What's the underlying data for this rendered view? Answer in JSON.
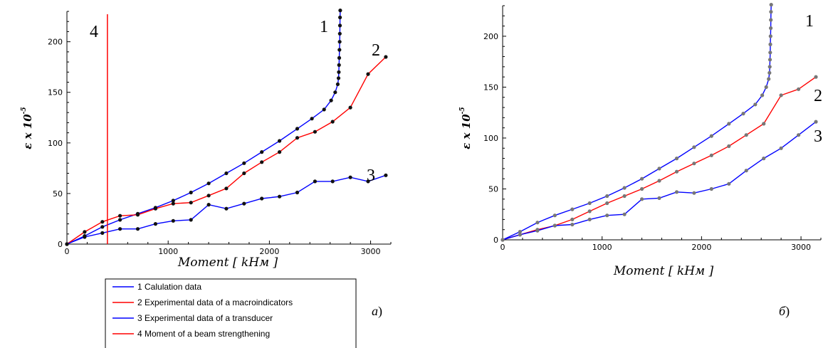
{
  "chart_data": [
    {
      "type": "line",
      "panel_label": "a",
      "panel_paren": ")",
      "xlabel": "Moment",
      "xunit": "kHм",
      "ylabel": "ε x 10",
      "ylabel_exp": "-5",
      "xlim": [
        0,
        3200
      ],
      "ylim": [
        0,
        230
      ],
      "xticks": [
        0,
        1000,
        2000,
        3000
      ],
      "yticks": [
        0,
        50,
        100,
        150,
        200
      ],
      "grid": false,
      "series": [
        {
          "name": "1",
          "color": "#0000ff",
          "points": [
            [
              0,
              0
            ],
            [
              175,
              8
            ],
            [
              350,
              17
            ],
            [
              525,
              24
            ],
            [
              700,
              30
            ],
            [
              875,
              36
            ],
            [
              1050,
              43
            ],
            [
              1225,
              51
            ],
            [
              1400,
              60
            ],
            [
              1575,
              70
            ],
            [
              1750,
              80
            ],
            [
              1925,
              91
            ],
            [
              2100,
              102
            ],
            [
              2275,
              114
            ],
            [
              2420,
              124
            ],
            [
              2540,
              133
            ],
            [
              2610,
              142
            ],
            [
              2650,
              150
            ],
            [
              2675,
              158
            ],
            [
              2683,
              164
            ],
            [
              2686,
              170
            ],
            [
              2688,
              177
            ],
            [
              2690,
              184
            ],
            [
              2692,
              192
            ],
            [
              2694,
              200
            ],
            [
              2696,
              208
            ],
            [
              2697,
              216
            ],
            [
              2698,
              224
            ],
            [
              2700,
              231
            ]
          ]
        },
        {
          "name": "2",
          "color": "#ff0000",
          "points": [
            [
              0,
              0
            ],
            [
              175,
              12
            ],
            [
              350,
              22
            ],
            [
              525,
              28
            ],
            [
              700,
              29
            ],
            [
              875,
              35
            ],
            [
              1050,
              40
            ],
            [
              1225,
              41
            ],
            [
              1400,
              48
            ],
            [
              1575,
              55
            ],
            [
              1750,
              70
            ],
            [
              1925,
              81
            ],
            [
              2100,
              91
            ],
            [
              2275,
              105
            ],
            [
              2450,
              111
            ],
            [
              2625,
              121
            ],
            [
              2800,
              135
            ],
            [
              2975,
              168
            ],
            [
              3150,
              185
            ]
          ]
        },
        {
          "name": "3",
          "color": "#0000ff",
          "points": [
            [
              0,
              0
            ],
            [
              175,
              7
            ],
            [
              350,
              11
            ],
            [
              525,
              15
            ],
            [
              700,
              15
            ],
            [
              875,
              20
            ],
            [
              1050,
              23
            ],
            [
              1225,
              24
            ],
            [
              1400,
              39
            ],
            [
              1575,
              35
            ],
            [
              1750,
              40
            ],
            [
              1925,
              45
            ],
            [
              2100,
              47
            ],
            [
              2275,
              51
            ],
            [
              2450,
              62
            ],
            [
              2625,
              62
            ],
            [
              2800,
              66
            ],
            [
              2975,
              62
            ],
            [
              3150,
              68
            ]
          ]
        },
        {
          "name": "4",
          "color": "#ff0000",
          "vertical_at_x": 400
        }
      ],
      "legend": [
        {
          "color": "#0000ff",
          "text": "1 Calulation data"
        },
        {
          "color": "#ff0000",
          "text": "2 Experimental data of a macroindicators"
        },
        {
          "color": "#0000ff",
          "text": "3 Experimental data of a transducer"
        },
        {
          "color": "#ff0000",
          "text": "4 Moment of a beam strengthening"
        }
      ],
      "legend_placement": "bottom"
    },
    {
      "type": "line",
      "panel_label": "б",
      "panel_paren": ")",
      "xlabel": "Moment",
      "xunit": "kHм",
      "ylabel": "ε x 10",
      "ylabel_exp": "-5",
      "xlim": [
        0,
        3200
      ],
      "ylim": [
        0,
        230
      ],
      "xticks": [
        0,
        1000,
        2000,
        3000
      ],
      "yticks": [
        0,
        50,
        100,
        150,
        200
      ],
      "grid": false,
      "series": [
        {
          "name": "1",
          "color": "#0000ff",
          "points": [
            [
              0,
              0
            ],
            [
              175,
              8
            ],
            [
              350,
              17
            ],
            [
              525,
              24
            ],
            [
              700,
              30
            ],
            [
              875,
              36
            ],
            [
              1050,
              43
            ],
            [
              1225,
              51
            ],
            [
              1400,
              60
            ],
            [
              1575,
              70
            ],
            [
              1750,
              80
            ],
            [
              1925,
              91
            ],
            [
              2100,
              102
            ],
            [
              2275,
              114
            ],
            [
              2420,
              124
            ],
            [
              2540,
              133
            ],
            [
              2610,
              142
            ],
            [
              2650,
              150
            ],
            [
              2675,
              158
            ],
            [
              2683,
              164
            ],
            [
              2686,
              170
            ],
            [
              2688,
              177
            ],
            [
              2690,
              184
            ],
            [
              2692,
              192
            ],
            [
              2694,
              200
            ],
            [
              2696,
              208
            ],
            [
              2697,
              216
            ],
            [
              2698,
              224
            ],
            [
              2700,
              231
            ]
          ]
        },
        {
          "name": "2",
          "color": "#ff0000",
          "points": [
            [
              0,
              0
            ],
            [
              175,
              5
            ],
            [
              350,
              10
            ],
            [
              525,
              14
            ],
            [
              700,
              20
            ],
            [
              875,
              28
            ],
            [
              1050,
              36
            ],
            [
              1225,
              43
            ],
            [
              1400,
              50
            ],
            [
              1575,
              58
            ],
            [
              1750,
              67
            ],
            [
              1925,
              75
            ],
            [
              2100,
              83
            ],
            [
              2275,
              92
            ],
            [
              2450,
              103
            ],
            [
              2625,
              114
            ],
            [
              2800,
              142
            ],
            [
              2975,
              148
            ],
            [
              3150,
              160
            ]
          ]
        },
        {
          "name": "3",
          "color": "#0000ff",
          "points": [
            [
              0,
              0
            ],
            [
              175,
              5
            ],
            [
              350,
              9
            ],
            [
              525,
              14
            ],
            [
              700,
              15
            ],
            [
              875,
              20
            ],
            [
              1050,
              24
            ],
            [
              1225,
              25
            ],
            [
              1400,
              40
            ],
            [
              1575,
              41
            ],
            [
              1750,
              47
            ],
            [
              1925,
              46
            ],
            [
              2100,
              50
            ],
            [
              2275,
              55
            ],
            [
              2450,
              68
            ],
            [
              2625,
              80
            ],
            [
              2800,
              90
            ],
            [
              2975,
              103
            ],
            [
              3150,
              116
            ]
          ]
        }
      ]
    }
  ]
}
